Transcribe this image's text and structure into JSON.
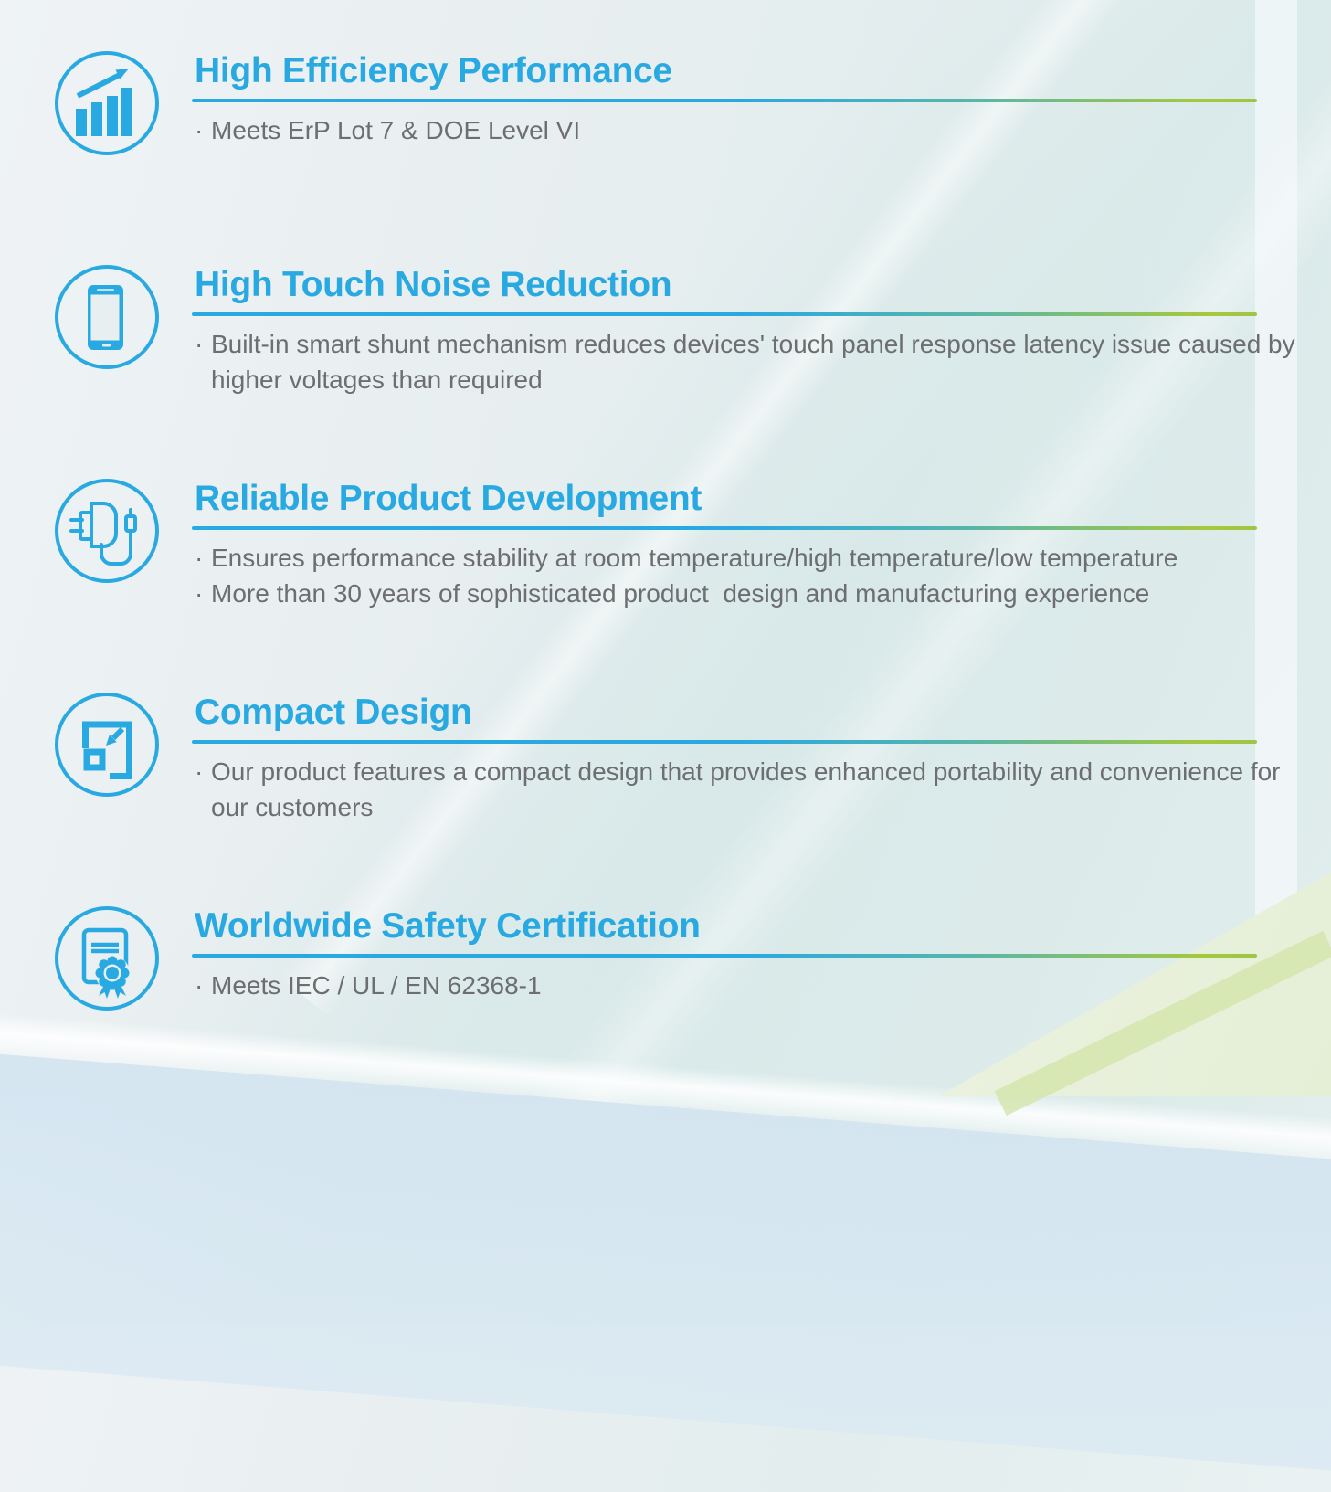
{
  "theme": {
    "accent_blue": "#29a9e1",
    "accent_green": "#a4c93c",
    "body_text_gray": "#6c6e70"
  },
  "bullet_marker": "·",
  "sections": [
    {
      "id": "high-efficiency-performance",
      "icon": "bar-chart-rise-icon",
      "title": "High Efficiency Performance",
      "bullets": [
        "Meets ErP Lot 7 & DOE Level VI"
      ]
    },
    {
      "id": "high-touch-noise-reduction",
      "icon": "smartphone-icon",
      "title": "High Touch Noise Reduction",
      "bullets": [
        "Built-in smart shunt mechanism reduces devices' touch panel response latency issue caused by higher voltages than required"
      ]
    },
    {
      "id": "reliable-product-development",
      "icon": "power-adapter-icon",
      "title": "Reliable Product Development",
      "bullets": [
        "Ensures performance stability at room temperature/high temperature/low temperature",
        "More than 30 years of sophisticated product  design and manufacturing experience"
      ]
    },
    {
      "id": "compact-design",
      "icon": "shrink-arrow-icon",
      "title": "Compact Design",
      "bullets": [
        "Our product features a compact design that provides enhanced portability and convenience for our customers"
      ]
    },
    {
      "id": "worldwide-safety-certification",
      "icon": "certificate-icon",
      "title": "Worldwide Safety Certification",
      "bullets": [
        "Meets IEC / UL / EN 62368-1"
      ]
    }
  ]
}
